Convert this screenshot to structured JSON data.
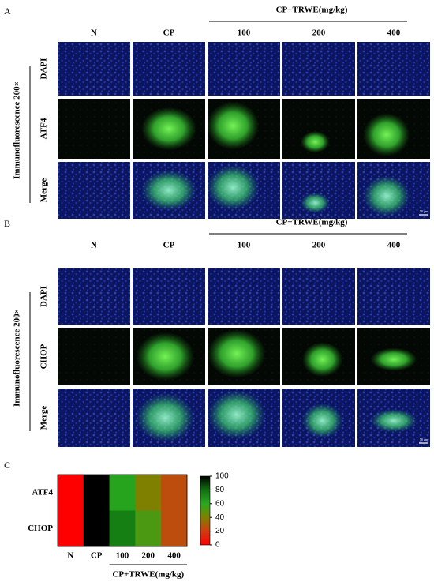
{
  "panel_a": {
    "label": "A",
    "group_label": "CP+TRWE(mg/kg)",
    "columns": [
      "N",
      "CP",
      "100",
      "200",
      "400"
    ],
    "rows": [
      "DAPI",
      "ATF4",
      "Merge"
    ],
    "side_label": "Immunofluorescence 200×",
    "scale_bar": "50 μm"
  },
  "panel_b": {
    "label": "B",
    "group_label": "CP+TRWE(mg/kg)",
    "columns": [
      "N",
      "CP",
      "100",
      "200",
      "400"
    ],
    "rows": [
      "DAPI",
      "CHOP",
      "Merge"
    ],
    "side_label": "Immunofluorescence 200×",
    "scale_bar": "50 μm"
  },
  "panel_c": {
    "label": "C",
    "type": "heatmap",
    "rows": [
      "ATF4",
      "CHOP"
    ],
    "columns": [
      "N",
      "CP",
      "100",
      "200",
      "400"
    ],
    "group_label": "CP+TRWE(mg/kg)",
    "values": [
      [
        0,
        100,
        62,
        40,
        25
      ],
      [
        0,
        100,
        75,
        52,
        25
      ]
    ],
    "clim": [
      0,
      100
    ],
    "colorbar_ticks": [
      0,
      20,
      40,
      60,
      80,
      100
    ]
  }
}
